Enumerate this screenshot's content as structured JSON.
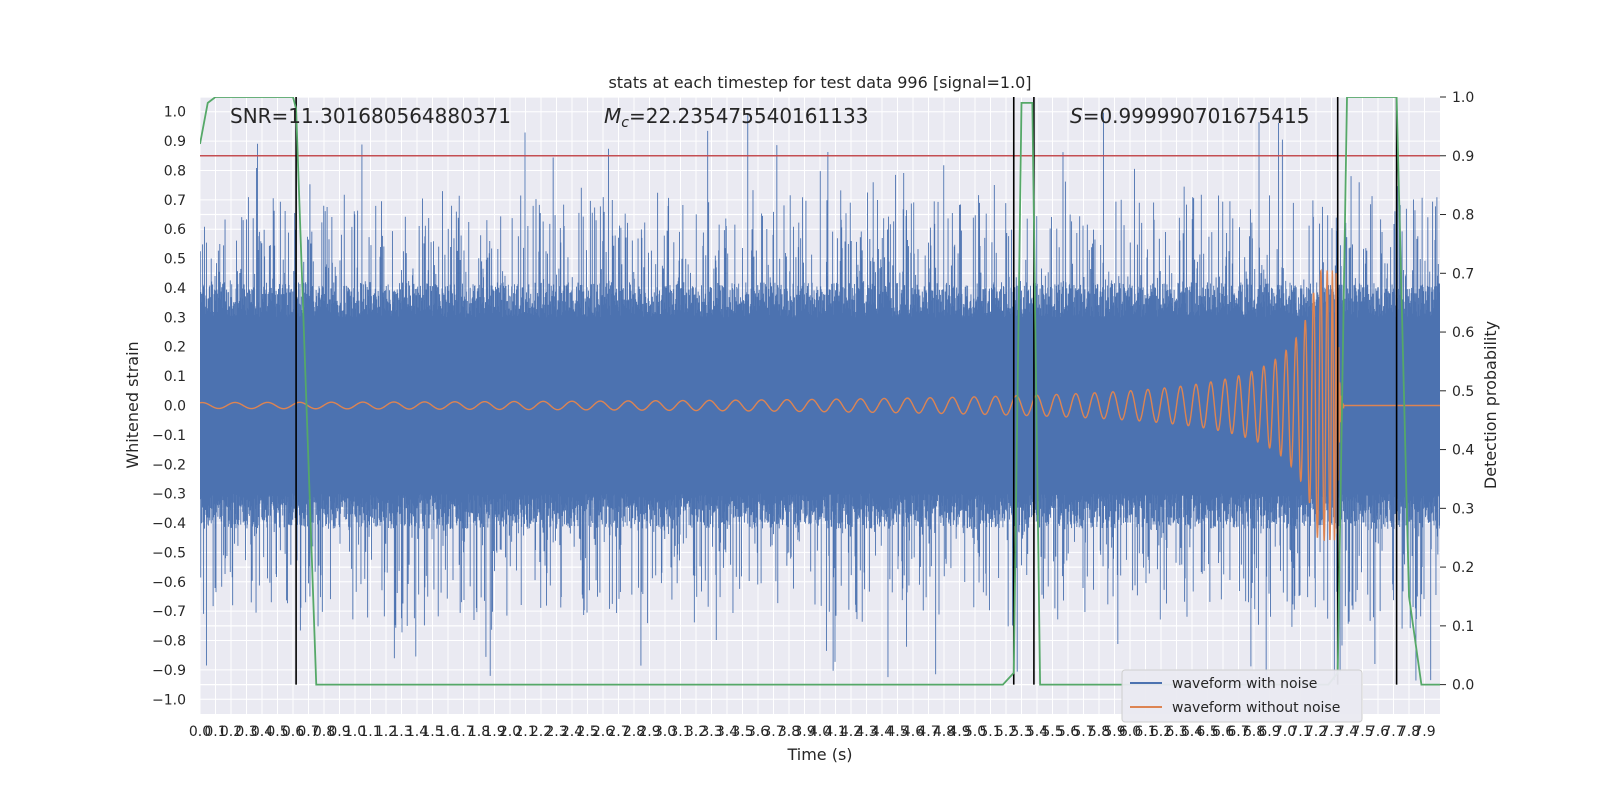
{
  "chart_data": {
    "type": "line",
    "title": "stats at each timestep for test data 996 [signal=1.0]",
    "xlabel": "Time (s)",
    "ylabel": "Whitened strain",
    "ylabel_right": "Detection probability",
    "xlim": [
      0.0,
      8.0
    ],
    "ylim": [
      -1.05,
      1.05
    ],
    "ylim_right": [
      -0.05,
      1.0
    ],
    "x_ticks": [
      0.0,
      0.1,
      0.2,
      0.3,
      0.4,
      0.5,
      0.6,
      0.7,
      0.8,
      0.9,
      1.0,
      1.1,
      1.2,
      1.3,
      1.4,
      1.5,
      1.6,
      1.7,
      1.8,
      1.9,
      2.0,
      2.1,
      2.2,
      2.3,
      2.4,
      2.5,
      2.6,
      2.7,
      2.8,
      2.9,
      3.0,
      3.1,
      3.2,
      3.3,
      3.4,
      3.5,
      3.6,
      3.7,
      3.8,
      3.9,
      4.0,
      4.1,
      4.2,
      4.3,
      4.4,
      4.5,
      4.6,
      4.7,
      4.8,
      4.9,
      5.0,
      5.1,
      5.2,
      5.3,
      5.4,
      5.5,
      5.6,
      5.7,
      5.8,
      5.9,
      6.0,
      6.1,
      6.2,
      6.3,
      6.4,
      6.5,
      6.6,
      6.7,
      6.8,
      6.9,
      7.0,
      7.1,
      7.2,
      7.3,
      7.4,
      7.5,
      7.6,
      7.7,
      7.8,
      7.9
    ],
    "y_ticks": [
      -1.0,
      -0.9,
      -0.8,
      -0.7,
      -0.6,
      -0.5,
      -0.4,
      -0.3,
      -0.2,
      -0.1,
      0.0,
      0.1,
      0.2,
      0.3,
      0.4,
      0.5,
      0.6,
      0.7,
      0.8,
      0.9,
      1.0
    ],
    "y_ticks_right": [
      0.0,
      0.1,
      0.2,
      0.3,
      0.4,
      0.5,
      0.6,
      0.7,
      0.8,
      0.9,
      1.0
    ],
    "annotations": {
      "snr": "SNR=11.301680564880371",
      "mc_symbol": "M",
      "mc_sub": "c",
      "mc_value": "=22.235475540161133",
      "s_symbol": "S",
      "s_value": "=0.999990701675415"
    },
    "legend": {
      "placement": "lower-right",
      "entries": [
        "waveform with noise",
        "waveform without noise"
      ]
    },
    "threshold": {
      "right_axis_value": 0.9,
      "color": "#c44e52"
    },
    "noise_envelope": {
      "base_amplitude": 0.3,
      "spike_max": 1.0,
      "seed": 996
    },
    "chirp": {
      "merger_time": 7.34,
      "peak_amplitude": 0.46,
      "early_amplitude": 0.01
    },
    "vertical_markers_x": [
      0.62,
      5.25,
      5.38,
      7.34,
      7.72
    ],
    "detection_probability": {
      "x": [
        0.0,
        0.05,
        0.1,
        0.6,
        0.62,
        0.75,
        5.1,
        5.18,
        5.25,
        5.3,
        5.37,
        5.42,
        7.28,
        7.34,
        7.4,
        7.72,
        7.8,
        7.88,
        8.0
      ],
      "y": [
        0.92,
        0.99,
        1.0,
        1.0,
        0.98,
        0.0,
        0.0,
        0.0,
        0.02,
        0.99,
        0.99,
        0.0,
        0.0,
        0.02,
        1.0,
        1.0,
        0.15,
        0.0,
        0.0
      ]
    },
    "colors": {
      "noise": "#4c72b0",
      "clean": "#dd8452",
      "probability": "#55a868",
      "markers": "#000000",
      "plot_background": "#eaeaf2",
      "grid": "#ffffff"
    },
    "grid": true
  }
}
